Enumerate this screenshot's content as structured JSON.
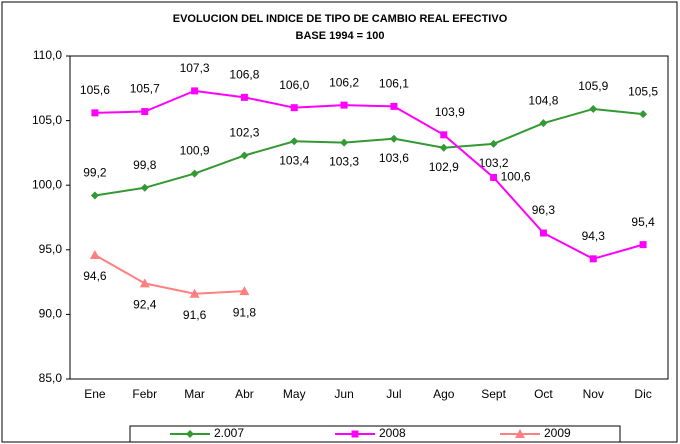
{
  "chart_data": {
    "type": "line",
    "title": "EVOLUCION DEL INDICE DE TIPO DE CAMBIO REAL EFECTIVO",
    "subtitle": "BASE 1994 = 100",
    "categories": [
      "Ene",
      "Febr",
      "Mar",
      "Abr",
      "May",
      "Jun",
      "Jul",
      "Ago",
      "Sept",
      "Oct",
      "Nov",
      "Dic"
    ],
    "series": [
      {
        "name": "2.007",
        "color": "#339933",
        "marker": "diamond",
        "values": [
          99.2,
          99.8,
          100.9,
          102.3,
          103.4,
          103.3,
          103.6,
          102.9,
          103.2,
          104.8,
          105.9,
          105.5
        ],
        "value_labels": [
          "99,2",
          "99,8",
          "100,9",
          "102,3",
          "103,4",
          "103,3",
          "103,6",
          "102,9",
          "103,2",
          "104,8",
          "105,9",
          "105,5"
        ]
      },
      {
        "name": "2008",
        "color": "#ff00ff",
        "marker": "square",
        "values": [
          105.6,
          105.7,
          107.3,
          106.8,
          106.0,
          106.2,
          106.1,
          103.9,
          100.6,
          96.3,
          94.3,
          95.4
        ],
        "value_labels": [
          "105,6",
          "105,7",
          "107,3",
          "106,8",
          "106,0",
          "106,2",
          "106,1",
          "103,9",
          "100,6",
          "96,3",
          "94,3",
          "95,4"
        ]
      },
      {
        "name": "2009",
        "color": "#ff8080",
        "marker": "triangle",
        "values": [
          94.6,
          92.4,
          91.6,
          91.8,
          null,
          null,
          null,
          null,
          null,
          null,
          null,
          null
        ],
        "value_labels": [
          "94,6",
          "92,4",
          "91,6",
          "91,8",
          null,
          null,
          null,
          null,
          null,
          null,
          null,
          null
        ]
      }
    ],
    "ylim": [
      85,
      110
    ],
    "yticks": [
      {
        "value": 85,
        "label": "85,0"
      },
      {
        "value": 90,
        "label": "90,0"
      },
      {
        "value": 95,
        "label": "95,0"
      },
      {
        "value": 100,
        "label": "100,0"
      },
      {
        "value": 105,
        "label": "105,0"
      },
      {
        "value": 110,
        "label": "110,0"
      }
    ],
    "legend": "bottom"
  }
}
